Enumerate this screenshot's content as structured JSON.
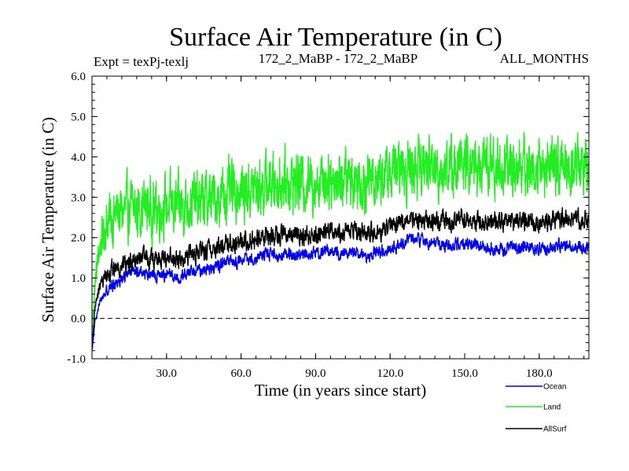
{
  "chart_data": {
    "type": "line",
    "title": "Surface Air Temperature (in C)",
    "expt": "Expt = texPj-texlj",
    "subtitle": "172_2_MaBP - 172_2_MaBP",
    "months": "ALL_MONTHS",
    "xlabel": "Time (in years since start)",
    "ylabel": "Surface Air Temperature (in C)",
    "xlim": [
      0,
      200
    ],
    "ylim": [
      -1.0,
      6.0
    ],
    "xticks": [
      30,
      60,
      90,
      120,
      150,
      180
    ],
    "xtick_labels": [
      "30.0",
      "60.0",
      "90.0",
      "120.0",
      "150.0",
      "180.0"
    ],
    "yticks": [
      -1,
      0,
      1,
      2,
      3,
      4,
      5,
      6
    ],
    "ytick_labels": [
      "-1.0",
      "0.0",
      "1.0",
      "2.0",
      "3.0",
      "4.0",
      "5.0",
      "6.0"
    ],
    "zero_line": 0.0,
    "series": [
      {
        "name": "Ocean",
        "color": "#0000ee",
        "x": [
          0.1,
          1,
          2,
          3,
          4,
          5,
          6,
          8,
          10,
          12,
          15,
          18,
          20,
          25,
          30,
          35,
          40,
          45,
          50,
          55,
          60,
          65,
          70,
          75,
          80,
          85,
          90,
          95,
          100,
          105,
          110,
          115,
          120,
          125,
          130,
          135,
          140,
          145,
          150,
          155,
          160,
          165,
          170,
          175,
          180,
          185,
          190,
          195,
          199.9
        ],
        "values": [
          -0.8,
          -0.2,
          0.15,
          0.35,
          0.5,
          0.6,
          0.7,
          0.8,
          0.9,
          1.0,
          1.1,
          1.15,
          1.15,
          1.05,
          1.1,
          1.0,
          1.15,
          1.2,
          1.3,
          1.4,
          1.4,
          1.5,
          1.6,
          1.55,
          1.6,
          1.55,
          1.6,
          1.7,
          1.6,
          1.65,
          1.55,
          1.6,
          1.75,
          1.85,
          2.0,
          1.9,
          1.85,
          1.8,
          1.85,
          1.8,
          1.75,
          1.7,
          1.8,
          1.75,
          1.7,
          1.75,
          1.85,
          1.75,
          1.75
        ],
        "noise": 0.12
      },
      {
        "name": "Land",
        "color": "#22ee22",
        "x": [
          0.1,
          1,
          2,
          3,
          4,
          5,
          6,
          8,
          10,
          12,
          15,
          18,
          20,
          25,
          30,
          35,
          40,
          45,
          50,
          55,
          60,
          65,
          70,
          75,
          80,
          85,
          90,
          95,
          100,
          105,
          110,
          115,
          120,
          125,
          130,
          135,
          140,
          145,
          150,
          155,
          160,
          165,
          170,
          175,
          180,
          185,
          190,
          195,
          199.9
        ],
        "values": [
          -0.3,
          0.7,
          1.3,
          1.7,
          2.0,
          2.2,
          2.4,
          2.5,
          2.6,
          2.6,
          2.7,
          2.7,
          2.8,
          2.7,
          2.8,
          2.75,
          2.9,
          2.9,
          3.0,
          3.1,
          3.15,
          3.2,
          3.3,
          3.4,
          3.4,
          3.35,
          3.4,
          3.5,
          3.45,
          3.5,
          3.4,
          3.5,
          3.6,
          3.7,
          3.75,
          3.8,
          3.7,
          3.75,
          3.8,
          3.75,
          3.8,
          3.7,
          3.8,
          3.75,
          3.7,
          3.75,
          3.8,
          3.8,
          3.75
        ],
        "noise": 0.55
      },
      {
        "name": "AllSurf",
        "color": "#000000",
        "x": [
          0.1,
          1,
          2,
          3,
          4,
          5,
          6,
          8,
          10,
          12,
          15,
          18,
          20,
          25,
          30,
          35,
          40,
          45,
          50,
          55,
          60,
          65,
          70,
          75,
          80,
          85,
          90,
          95,
          100,
          105,
          110,
          115,
          120,
          125,
          130,
          135,
          140,
          145,
          150,
          155,
          160,
          165,
          170,
          175,
          180,
          185,
          190,
          195,
          199.9
        ],
        "values": [
          -0.6,
          0.1,
          0.5,
          0.75,
          0.9,
          1.0,
          1.1,
          1.2,
          1.25,
          1.3,
          1.4,
          1.45,
          1.5,
          1.45,
          1.5,
          1.45,
          1.6,
          1.65,
          1.75,
          1.85,
          1.9,
          1.95,
          2.05,
          2.05,
          2.1,
          2.05,
          2.1,
          2.2,
          2.15,
          2.2,
          2.1,
          2.15,
          2.3,
          2.4,
          2.5,
          2.45,
          2.4,
          2.4,
          2.45,
          2.4,
          2.4,
          2.35,
          2.45,
          2.4,
          2.35,
          2.4,
          2.5,
          2.45,
          2.4
        ],
        "noise": 0.18
      }
    ],
    "legend": [
      {
        "name": "Ocean",
        "color": "#0000ee"
      },
      {
        "name": "Land",
        "color": "#22ee22"
      },
      {
        "name": "AllSurf",
        "color": "#000000"
      }
    ]
  }
}
